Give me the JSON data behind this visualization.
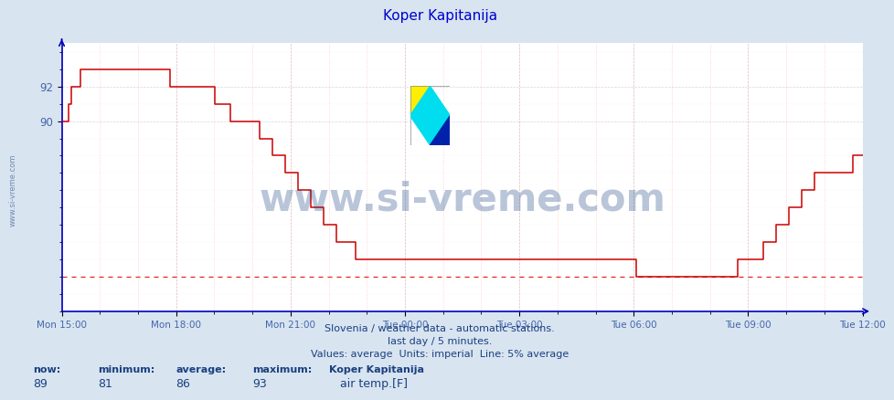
{
  "title": "Koper Kapitanija",
  "title_color": "#0000cc",
  "bg_color": "#d8e4f0",
  "plot_bg_color": "#ffffff",
  "line_color": "#cc0000",
  "avg_line_color": "#dd0000",
  "ylabel_color": "#4466aa",
  "xlabel_color": "#4466aa",
  "watermark_color": "#1a4080",
  "watermark_text": "www.si-vreme.com",
  "left_text": "www.si-vreme.com",
  "subtitle1": "Slovenia / weather data - automatic stations.",
  "subtitle2": "last day / 5 minutes.",
  "subtitle3": "Values: average  Units: imperial  Line: 5% average",
  "footer_label1": "now:",
  "footer_label2": "minimum:",
  "footer_label3": "average:",
  "footer_label4": "maximum:",
  "footer_station": "Koper Kapitanija",
  "footer_v1": "89",
  "footer_v2": "81",
  "footer_v3": "86",
  "footer_v4": "93",
  "footer_series": "air temp.[F]",
  "avg_value": 81,
  "ylim_min": 79.0,
  "ylim_max": 94.5,
  "ytick_positions": [
    90,
    92
  ],
  "ytick_labels": [
    "90",
    "92"
  ],
  "x_tick_labels": [
    "Mon 15:00",
    "Mon 18:00",
    "Mon 21:00",
    "Tue 00:00",
    "Tue 03:00",
    "Tue 06:00",
    "Tue 09:00",
    "Tue 12:00"
  ],
  "values": [
    90,
    90,
    91,
    92,
    92,
    92,
    93,
    93,
    93,
    93,
    93,
    93,
    93,
    93,
    93,
    93,
    93,
    93,
    93,
    93,
    93,
    93,
    93,
    93,
    93,
    93,
    93,
    93,
    93,
    93,
    93,
    93,
    93,
    93,
    92,
    92,
    92,
    92,
    92,
    92,
    92,
    92,
    92,
    92,
    92,
    92,
    92,
    92,
    91,
    91,
    91,
    91,
    91,
    90,
    90,
    90,
    90,
    90,
    90,
    90,
    90,
    90,
    89,
    89,
    89,
    89,
    88,
    88,
    88,
    88,
    87,
    87,
    87,
    87,
    86,
    86,
    86,
    86,
    85,
    85,
    85,
    85,
    84,
    84,
    84,
    84,
    83,
    83,
    83,
    83,
    83,
    83,
    82,
    82,
    82,
    82,
    82,
    82,
    82,
    82,
    82,
    82,
    82,
    82,
    82,
    82,
    82,
    82,
    82,
    82,
    82,
    82,
    82,
    82,
    82,
    82,
    82,
    82,
    82,
    82,
    82,
    82,
    82,
    82,
    82,
    82,
    82,
    82,
    82,
    82,
    82,
    82,
    82,
    82,
    82,
    82,
    82,
    82,
    82,
    82,
    82,
    82,
    82,
    82,
    82,
    82,
    82,
    82,
    82,
    82,
    82,
    82,
    82,
    82,
    82,
    82,
    82,
    82,
    82,
    82,
    82,
    82,
    82,
    82,
    82,
    82,
    82,
    82,
    82,
    82,
    82,
    82,
    82,
    82,
    82,
    82,
    82,
    82,
    82,
    82,
    81,
    81,
    81,
    81,
    81,
    81,
    81,
    81,
    81,
    81,
    81,
    81,
    81,
    81,
    81,
    81,
    81,
    81,
    81,
    81,
    81,
    81,
    81,
    81,
    81,
    81,
    81,
    81,
    81,
    81,
    81,
    81,
    82,
    82,
    82,
    82,
    82,
    82,
    82,
    82,
    83,
    83,
    83,
    83,
    84,
    84,
    84,
    84,
    85,
    85,
    85,
    85,
    86,
    86,
    86,
    86,
    87,
    87,
    87,
    87,
    87,
    87,
    87,
    87,
    87,
    87,
    87,
    87,
    88,
    88,
    88,
    88
  ]
}
